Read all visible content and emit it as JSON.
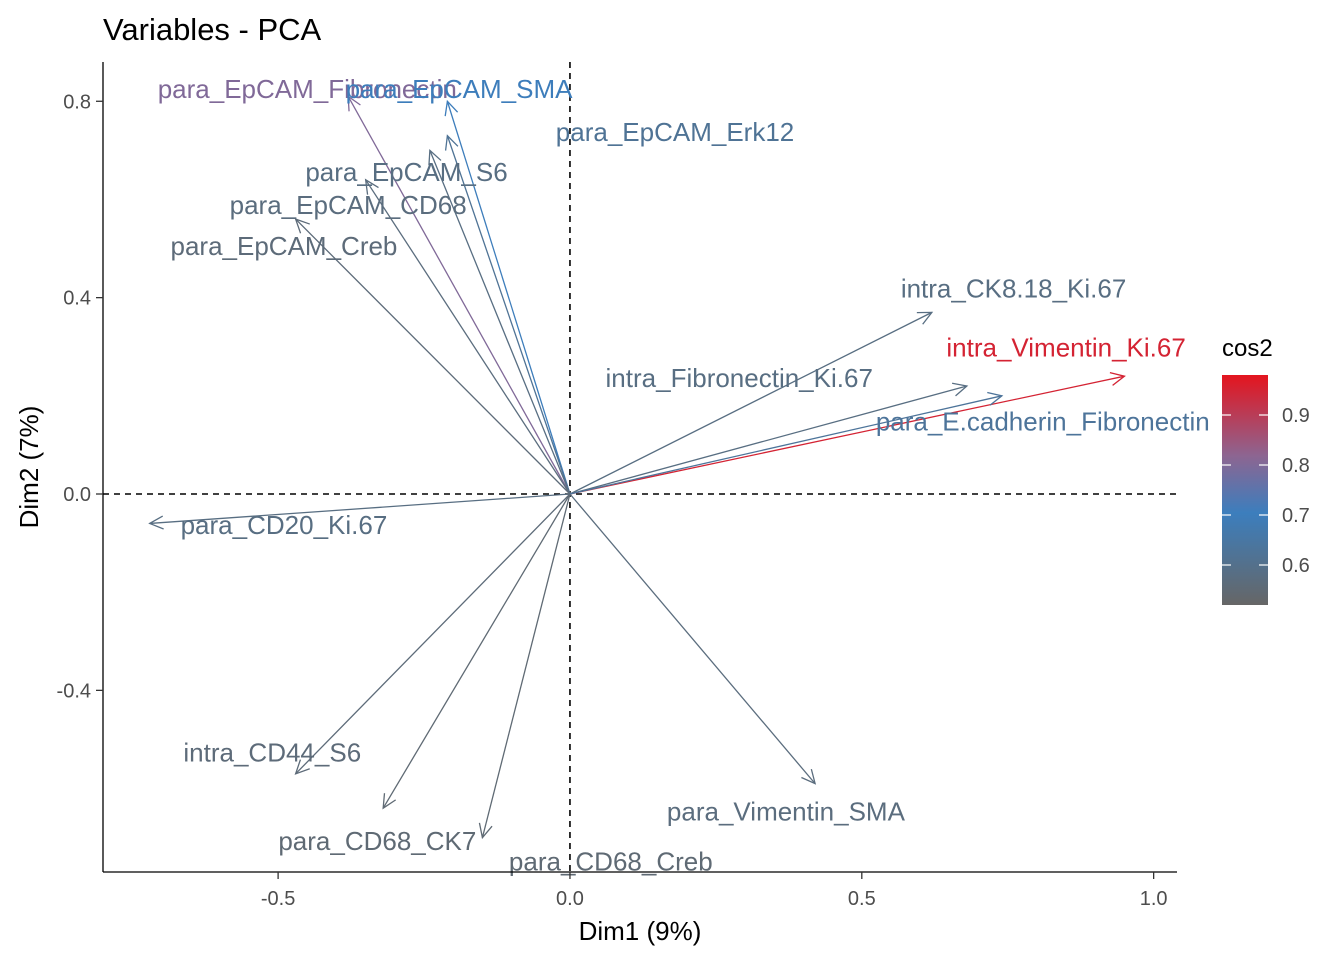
{
  "chart_data": {
    "type": "pca-variables",
    "title": "Variables - PCA",
    "xlabel": "Dim1 (9%)",
    "ylabel": "Dim2 (7%)",
    "xlim": [
      -0.8,
      1.04
    ],
    "ylim": [
      -0.77,
      0.88
    ],
    "xticks": [
      -0.5,
      0.0,
      0.5,
      1.0
    ],
    "xtick_labels": [
      "-0.5",
      "0.0",
      "0.5",
      "1.0"
    ],
    "yticks": [
      -0.4,
      0.0,
      0.4,
      0.8
    ],
    "ytick_labels": [
      "-0.4",
      "0.0",
      "0.4",
      "0.8"
    ],
    "grid": false,
    "reference_lines": {
      "x": 0,
      "y": 0,
      "style": "dashed"
    },
    "variables": [
      {
        "name": "para_EpCAM_Fibronectin",
        "x": -0.38,
        "y": 0.81,
        "cos2": 0.8,
        "label_x": -0.45,
        "label_y": 0.825
      },
      {
        "name": "para_EpCAM_SMA",
        "x": -0.21,
        "y": 0.8,
        "cos2": 0.7,
        "label_x": -0.19,
        "label_y": 0.825
      },
      {
        "name": "para_EpCAM_Erk12",
        "x": -0.21,
        "y": 0.73,
        "cos2": 0.62,
        "label_x": 0.18,
        "label_y": 0.737
      },
      {
        "name": "para_EpCAM_S6",
        "x": -0.24,
        "y": 0.7,
        "cos2": 0.58,
        "label_x": -0.28,
        "label_y": 0.656
      },
      {
        "name": "para_EpCAM_CD68",
        "x": -0.35,
        "y": 0.64,
        "cos2": 0.57,
        "label_x": -0.38,
        "label_y": 0.589
      },
      {
        "name": "para_EpCAM_Creb",
        "x": -0.47,
        "y": 0.56,
        "cos2": 0.56,
        "label_x": -0.49,
        "label_y": 0.505
      },
      {
        "name": "intra_CK8.18_Ki.67",
        "x": 0.62,
        "y": 0.37,
        "cos2": 0.58,
        "label_x": 0.76,
        "label_y": 0.419
      },
      {
        "name": "intra_Vimentin_Ki.67",
        "x": 0.95,
        "y": 0.24,
        "cos2": 0.95,
        "label_x": 0.85,
        "label_y": 0.298
      },
      {
        "name": "intra_Fibronectin_Ki.67",
        "x": 0.68,
        "y": 0.22,
        "cos2": 0.58,
        "label_x": 0.29,
        "label_y": 0.236
      },
      {
        "name": "para_E.cadherin_Fibronectin",
        "x": 0.74,
        "y": 0.2,
        "cos2": 0.63,
        "label_x": 0.81,
        "label_y": 0.148
      },
      {
        "name": "para_CD20_Ki.67",
        "x": -0.72,
        "y": -0.06,
        "cos2": 0.58,
        "label_x": -0.49,
        "label_y": -0.063
      },
      {
        "name": "intra_CD44_S6",
        "x": -0.47,
        "y": -0.57,
        "cos2": 0.56,
        "label_x": -0.51,
        "label_y": -0.527
      },
      {
        "name": "para_CD68_CK7",
        "x": -0.32,
        "y": -0.64,
        "cos2": 0.55,
        "label_x": -0.33,
        "label_y": -0.707
      },
      {
        "name": "para_CD68_Creb",
        "x": -0.15,
        "y": -0.7,
        "cos2": 0.55,
        "label_x": 0.07,
        "label_y": -0.749
      },
      {
        "name": "para_Vimentin_SMA",
        "x": 0.42,
        "y": -0.59,
        "cos2": 0.57,
        "label_x": 0.37,
        "label_y": -0.647
      }
    ],
    "legend": {
      "title": "cos2",
      "placement": "right",
      "min": 0.52,
      "max": 0.98,
      "ticks": [
        0.6,
        0.7,
        0.8,
        0.9
      ],
      "tick_labels": [
        "0.6",
        "0.7",
        "0.8",
        "0.9"
      ],
      "gradient_colors": [
        "#666666",
        "#3C7EBD",
        "#8D6591",
        "#E4141E"
      ]
    }
  }
}
